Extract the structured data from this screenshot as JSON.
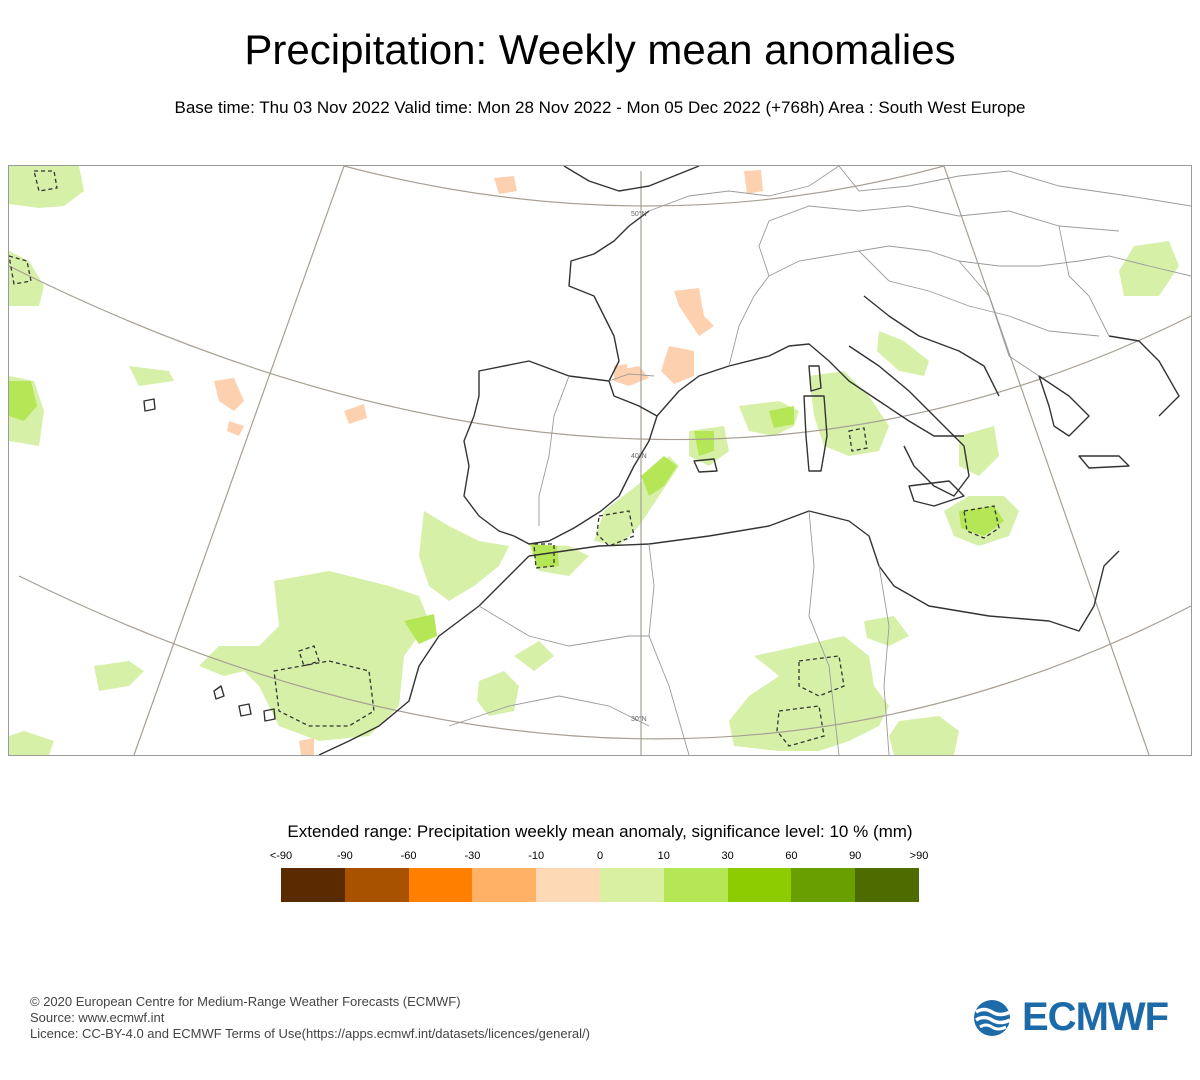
{
  "header": {
    "title": "Precipitation: Weekly mean anomalies",
    "subtitle": "Base time: Thu 03 Nov 2022 Valid time: Mon 28 Nov 2022 - Mon 05 Dec 2022 (+768h) Area : South West Europe"
  },
  "map": {
    "lat_labels": [
      "50°N",
      "40°N",
      "30°N"
    ],
    "colors": {
      "coast": "#333333",
      "border": "#9a9a9a",
      "graticule": "#a89f94",
      "light_green": "#d6f0a8",
      "green": "#b5e655",
      "light_orange": "#fdd1b0"
    }
  },
  "legend": {
    "title": "Extended range: Precipitation weekly mean anomaly, significance level: 10 % (mm)",
    "ticks": [
      "<-90",
      "-90",
      "-60",
      "-30",
      "-10",
      "0",
      "10",
      "30",
      "60",
      "90",
      ">90"
    ],
    "colors": [
      "#5b2b00",
      "#a85200",
      "#ff7f00",
      "#ffb266",
      "#fdd9b5",
      "#d9f0a3",
      "#b5e655",
      "#8dcc00",
      "#6a9f00",
      "#4e6b00"
    ]
  },
  "footer": {
    "line1": "© 2020 European Centre for Medium-Range Weather Forecasts (ECMWF)",
    "line2": "Source: www.ecmwf.int",
    "line3": "Licence: CC-BY-4.0 and ECMWF Terms of Use(https://apps.ecmwf.int/datasets/licences/general/)"
  },
  "logo": {
    "text": "ECMWF",
    "color": "#1d6aa9"
  }
}
